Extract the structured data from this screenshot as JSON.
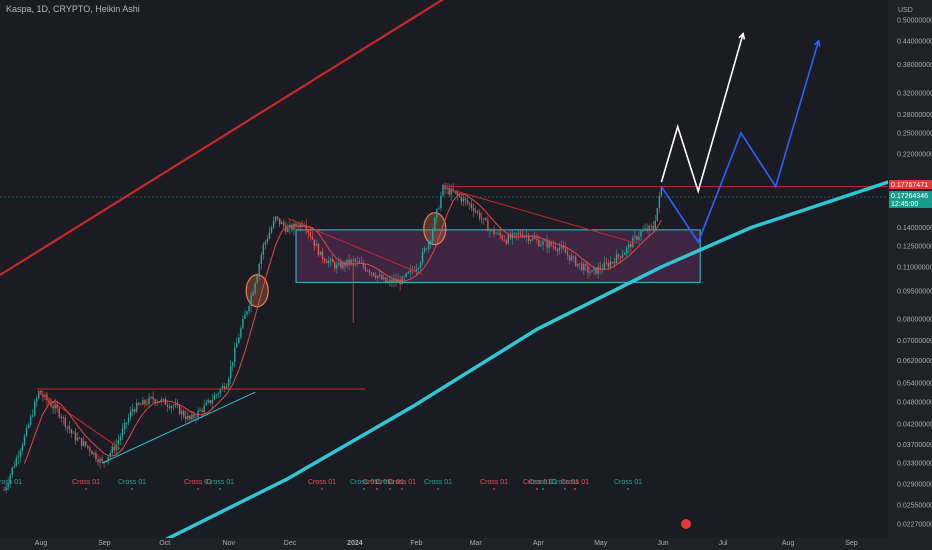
{
  "header": {
    "symbol_line": "Kaspa, 1D, CRYPTO, Heikin Ashi"
  },
  "price_axis": {
    "currency": "USD",
    "labels": [
      "0.50000000",
      "0.44000000",
      "0.38000000",
      "0.32000000",
      "0.28000000",
      "0.25000000",
      "0.22000000",
      "0.18000000",
      "0.14000000",
      "0.12500000",
      "0.11000000",
      "0.09500000",
      "0.08000000",
      "0.07000000",
      "0.06200000",
      "0.05400000",
      "0.04800000",
      "0.04200000",
      "0.03700000",
      "0.03300000",
      "0.02900000",
      "0.02550000",
      "0.02270000"
    ],
    "last_price_tag": "0.17767471",
    "current_price_tag": "0.17264346",
    "countdown_tag": "12:45:00"
  },
  "time_axis": {
    "labels": [
      "Aug",
      "Sep",
      "Oct",
      "Nov",
      "Dec",
      "2024",
      "Feb",
      "Mar",
      "Apr",
      "May",
      "Jun",
      "Jul",
      "Aug",
      "Sep"
    ]
  },
  "signals": {
    "labels": [
      "Cross 01",
      "Cross 01",
      "Cross 01",
      "Cross 01",
      "Cross 01",
      "Cross 01",
      "Cross 01",
      "Cross 01",
      "Cross 01",
      "Cross 01",
      "Cross 01",
      "Cross 01",
      "Cross 01",
      "Cross 01",
      "Cross 01",
      "Cross 01",
      "Cross 01"
    ]
  },
  "chart_data": {
    "type": "candlestick",
    "title": "Kaspa, 1D, CRYPTO, Heikin Ashi",
    "scale": "log",
    "ylim": [
      0.0215,
      0.5
    ],
    "grid": false,
    "price_path": [
      {
        "date": "2023-07-15",
        "price": 0.028
      },
      {
        "date": "2023-07-26",
        "price": 0.04
      },
      {
        "date": "2023-08-01",
        "price": 0.051
      },
      {
        "date": "2023-08-11",
        "price": 0.045
      },
      {
        "date": "2023-08-18",
        "price": 0.039
      },
      {
        "date": "2023-08-26",
        "price": 0.036
      },
      {
        "date": "2023-09-01",
        "price": 0.033
      },
      {
        "date": "2023-09-08",
        "price": 0.037
      },
      {
        "date": "2023-09-16",
        "price": 0.046
      },
      {
        "date": "2023-09-26",
        "price": 0.049
      },
      {
        "date": "2023-10-06",
        "price": 0.047
      },
      {
        "date": "2023-10-14",
        "price": 0.043
      },
      {
        "date": "2023-10-22",
        "price": 0.047
      },
      {
        "date": "2023-11-01",
        "price": 0.054
      },
      {
        "date": "2023-11-07",
        "price": 0.072
      },
      {
        "date": "2023-11-14",
        "price": 0.096
      },
      {
        "date": "2023-11-19",
        "price": 0.125
      },
      {
        "date": "2023-11-25",
        "price": 0.148
      },
      {
        "date": "2023-12-01",
        "price": 0.138
      },
      {
        "date": "2023-12-09",
        "price": 0.145
      },
      {
        "date": "2023-12-17",
        "price": 0.118
      },
      {
        "date": "2023-12-25",
        "price": 0.11
      },
      {
        "date": "2024-01-02",
        "price": 0.114
      },
      {
        "date": "2024-01-10",
        "price": 0.108
      },
      {
        "date": "2024-01-18",
        "price": 0.1
      },
      {
        "date": "2024-01-26",
        "price": 0.101
      },
      {
        "date": "2024-02-03",
        "price": 0.112
      },
      {
        "date": "2024-02-09",
        "price": 0.132
      },
      {
        "date": "2024-02-15",
        "price": 0.178
      },
      {
        "date": "2024-02-21",
        "price": 0.172
      },
      {
        "date": "2024-03-01",
        "price": 0.158
      },
      {
        "date": "2024-03-09",
        "price": 0.138
      },
      {
        "date": "2024-03-17",
        "price": 0.13
      },
      {
        "date": "2024-03-25",
        "price": 0.135
      },
      {
        "date": "2024-04-02",
        "price": 0.128
      },
      {
        "date": "2024-04-12",
        "price": 0.124
      },
      {
        "date": "2024-04-20",
        "price": 0.113
      },
      {
        "date": "2024-04-28",
        "price": 0.106
      },
      {
        "date": "2024-05-06",
        "price": 0.112
      },
      {
        "date": "2024-05-14",
        "price": 0.121
      },
      {
        "date": "2024-05-22",
        "price": 0.136
      },
      {
        "date": "2024-05-28",
        "price": 0.14
      },
      {
        "date": "2024-06-01",
        "price": 0.178
      }
    ],
    "projections": [
      {
        "color": "#ffffff",
        "points": [
          {
            "date": "2024-06-01",
            "price": 0.185
          },
          {
            "date": "2024-06-09",
            "price": 0.26
          },
          {
            "date": "2024-06-19",
            "price": 0.175
          },
          {
            "date": "2024-07-11",
            "price": 0.46
          }
        ]
      },
      {
        "color": "#2962ff",
        "points": [
          {
            "date": "2024-06-01",
            "price": 0.18
          },
          {
            "date": "2024-06-19",
            "price": 0.128
          },
          {
            "date": "2024-07-10",
            "price": 0.25
          },
          {
            "date": "2024-07-27",
            "price": 0.18
          },
          {
            "date": "2024-08-17",
            "price": 0.44
          }
        ]
      }
    ],
    "colors": {
      "up": "#26a69a",
      "down": "#ef5350",
      "trend_line": "#2fc7d6",
      "resistance": "#c62828",
      "range_box": "#5b2d5c"
    }
  }
}
